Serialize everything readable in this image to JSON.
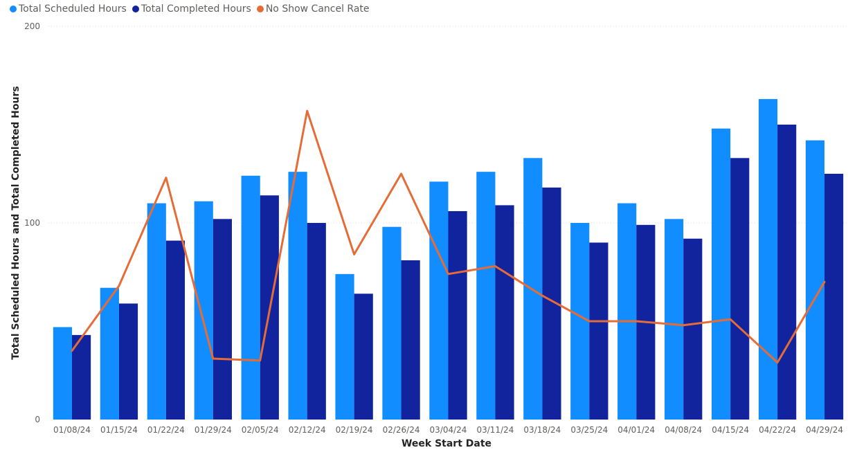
{
  "legend": {
    "items": [
      {
        "label": "Total Scheduled Hours",
        "color": "#118dff"
      },
      {
        "label": "Total Completed Hours",
        "color": "#12239e"
      },
      {
        "label": "No Show Cancel Rate",
        "color": "#e66c37"
      }
    ]
  },
  "chart_data": {
    "type": "bar",
    "title": "",
    "xlabel": "Week Start Date",
    "ylabel": "Total Scheduled Hours and Total Completed Hours",
    "ylim": [
      0,
      200
    ],
    "yticks": [
      "0",
      "100",
      "200"
    ],
    "grid": true,
    "legend_position": "top-left",
    "categories": [
      "01/08/24",
      "01/15/24",
      "01/22/24",
      "01/29/24",
      "02/05/24",
      "02/12/24",
      "02/19/24",
      "02/26/24",
      "03/04/24",
      "03/11/24",
      "03/18/24",
      "03/25/24",
      "04/01/24",
      "04/08/24",
      "04/15/24",
      "04/22/24",
      "04/29/24"
    ],
    "series": [
      {
        "name": "Total Scheduled Hours",
        "type": "bar",
        "color": "#118dff",
        "values": [
          47,
          67,
          110,
          111,
          124,
          126,
          74,
          98,
          121,
          126,
          133,
          100,
          110,
          102,
          148,
          163,
          142
        ]
      },
      {
        "name": "Total Completed Hours",
        "type": "bar",
        "color": "#12239e",
        "values": [
          43,
          59,
          91,
          102,
          114,
          100,
          64,
          81,
          106,
          109,
          118,
          90,
          99,
          92,
          133,
          150,
          125
        ]
      },
      {
        "name": "No Show Cancel Rate",
        "type": "line",
        "color": "#e66c37",
        "axis": "secondary-unlabeled",
        "values": [
          35,
          68,
          123,
          31,
          30,
          157,
          84,
          125,
          74,
          78,
          63,
          50,
          50,
          48,
          51,
          29,
          70
        ]
      }
    ]
  }
}
